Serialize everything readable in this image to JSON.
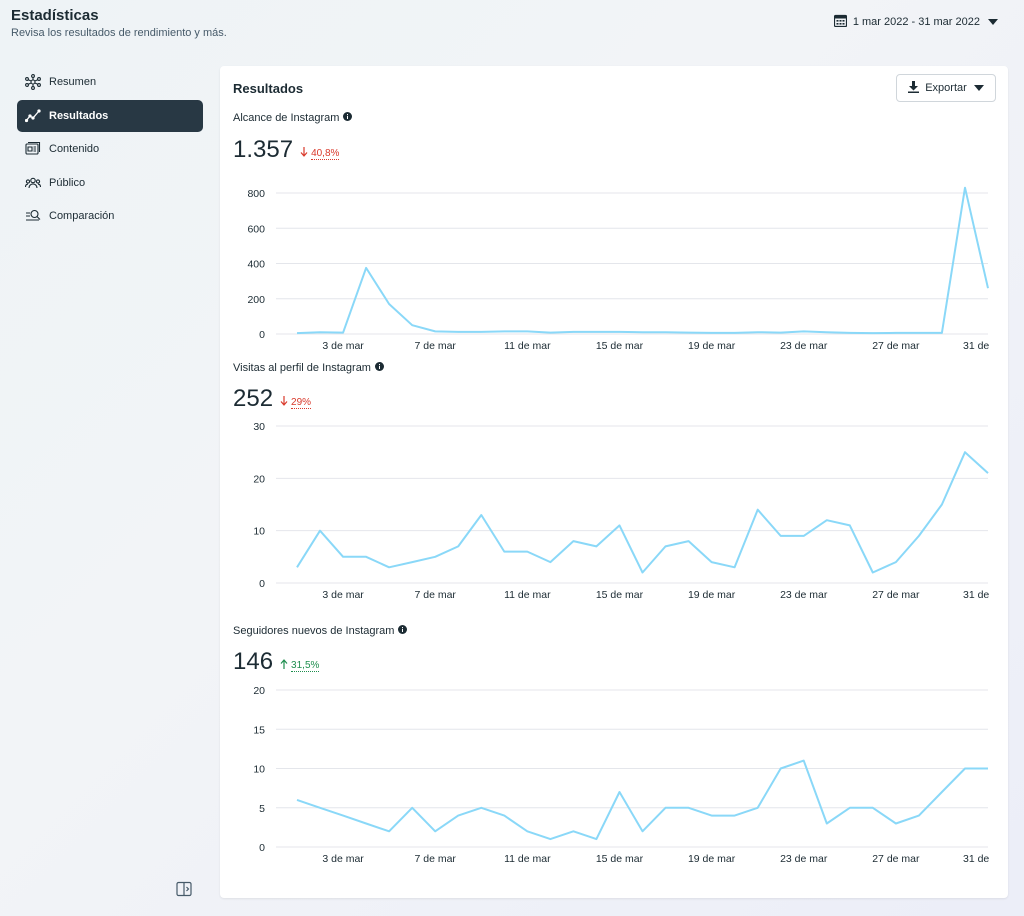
{
  "header": {
    "title": "Estadísticas",
    "subtitle": "Revisa los resultados de rendimiento y más.",
    "date_range": "1 mar 2022 - 31 mar 2022"
  },
  "sidebar": {
    "items": [
      {
        "label": "Resumen",
        "icon": "overview-icon",
        "active": false
      },
      {
        "label": "Resultados",
        "icon": "results-icon",
        "active": true
      },
      {
        "label": "Contenido",
        "icon": "content-icon",
        "active": false
      },
      {
        "label": "Público",
        "icon": "audience-icon",
        "active": false
      },
      {
        "label": "Comparación",
        "icon": "comparison-icon",
        "active": false
      }
    ]
  },
  "panel": {
    "title": "Resultados",
    "export_label": "Exportar"
  },
  "colors": {
    "line": "#8ad8f8",
    "active_nav": "#283844",
    "down": "#d9392b",
    "up": "#1e8e4e"
  },
  "metrics": [
    {
      "label": "Alcance de Instagram",
      "value": "1.357",
      "change": "40,8%",
      "direction": "down"
    },
    {
      "label": "Visitas al perfil de Instagram",
      "value": "252",
      "change": "29%",
      "direction": "down"
    },
    {
      "label": "Seguidores nuevos de Instagram",
      "value": "146",
      "change": "31,5%",
      "direction": "up"
    }
  ],
  "chart_data": [
    {
      "type": "line",
      "x_tick_labels": [
        "3 de mar",
        "7 de mar",
        "11 de mar",
        "15 de mar",
        "19 de mar",
        "23 de mar",
        "27 de mar",
        "31 de"
      ],
      "x": [
        1,
        2,
        3,
        4,
        5,
        6,
        7,
        8,
        9,
        10,
        11,
        12,
        13,
        14,
        15,
        16,
        17,
        18,
        19,
        20,
        21,
        22,
        23,
        24,
        25,
        26,
        27,
        28,
        29,
        30,
        31
      ],
      "values": [
        5,
        10,
        8,
        375,
        170,
        50,
        15,
        12,
        12,
        15,
        15,
        8,
        12,
        12,
        12,
        10,
        10,
        8,
        6,
        6,
        10,
        8,
        15,
        10,
        6,
        5,
        6,
        6,
        6,
        830,
        260
      ],
      "yticks": [
        0,
        200,
        400,
        600,
        800
      ],
      "ylim": [
        0,
        850
      ],
      "grid": true
    },
    {
      "type": "line",
      "x_tick_labels": [
        "3 de mar",
        "7 de mar",
        "11 de mar",
        "15 de mar",
        "19 de mar",
        "23 de mar",
        "27 de mar",
        "31 de"
      ],
      "x": [
        1,
        2,
        3,
        4,
        5,
        6,
        7,
        8,
        9,
        10,
        11,
        12,
        13,
        14,
        15,
        16,
        17,
        18,
        19,
        20,
        21,
        22,
        23,
        24,
        25,
        26,
        27,
        28,
        29,
        30,
        31
      ],
      "values": [
        3,
        10,
        5,
        5,
        3,
        4,
        5,
        7,
        13,
        6,
        6,
        4,
        8,
        7,
        11,
        2,
        7,
        8,
        4,
        3,
        14,
        9,
        9,
        12,
        11,
        2,
        4,
        9,
        15,
        25,
        21
      ],
      "yticks": [
        0,
        10,
        20,
        30
      ],
      "ylim": [
        0,
        30
      ],
      "grid": true
    },
    {
      "type": "line",
      "x_tick_labels": [
        "3 de mar",
        "7 de mar",
        "11 de mar",
        "15 de mar",
        "19 de mar",
        "23 de mar",
        "27 de mar",
        "31 de"
      ],
      "x": [
        1,
        2,
        3,
        4,
        5,
        6,
        7,
        8,
        9,
        10,
        11,
        12,
        13,
        14,
        15,
        16,
        17,
        18,
        19,
        20,
        21,
        22,
        23,
        24,
        25,
        26,
        27,
        28,
        29,
        30,
        31
      ],
      "values": [
        6,
        5,
        4,
        3,
        2,
        5,
        2,
        4,
        5,
        4,
        2,
        1,
        2,
        1,
        7,
        2,
        5,
        5,
        4,
        4,
        5,
        10,
        11,
        3,
        5,
        5,
        3,
        4,
        7,
        10,
        10
      ],
      "yticks": [
        0,
        5,
        10,
        15,
        20
      ],
      "ylim": [
        0,
        20
      ],
      "grid": true
    }
  ]
}
